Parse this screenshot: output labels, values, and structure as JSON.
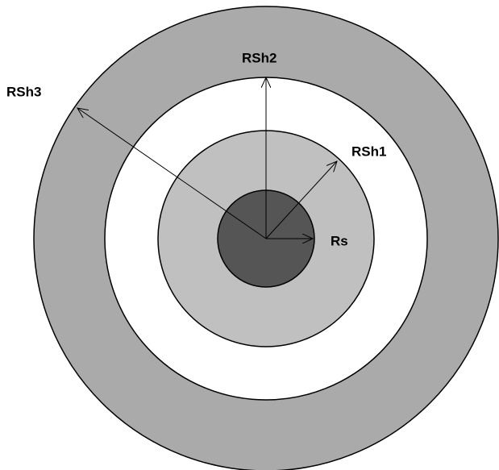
{
  "labels": {
    "rs": "Rs",
    "rsh1": "RSh1",
    "rsh2": "RSh2",
    "rsh3": "RSh3"
  }
}
